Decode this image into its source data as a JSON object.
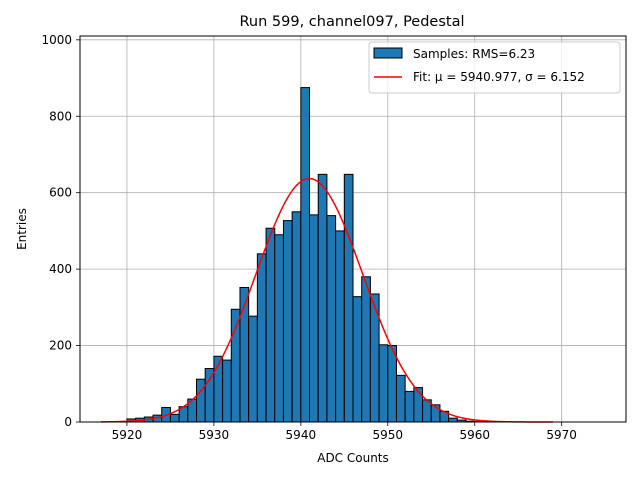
{
  "chart_data": {
    "type": "bar",
    "title": "Run 599, channel097, Pedestal",
    "xlabel": "ADC Counts",
    "ylabel": "Entries",
    "xlim": [
      5914.6,
      5977.4
    ],
    "ylim": [
      0,
      1010
    ],
    "xticks": [
      5920,
      5930,
      5940,
      5950,
      5960,
      5970
    ],
    "yticks": [
      0,
      200,
      400,
      600,
      800,
      1000
    ],
    "grid": true,
    "legend_position": "upper right",
    "bin_width": 1,
    "bin_edges_start": 5920,
    "series": [
      {
        "name": "Samples: RMS=6.23",
        "kind": "histogram",
        "color": "#1f77b4",
        "edgecolor": "#000000",
        "values": [
          8,
          10,
          13,
          18,
          38,
          20,
          40,
          60,
          112,
          140,
          172,
          162,
          295,
          352,
          277,
          440,
          507,
          490,
          527,
          550,
          875,
          542,
          648,
          540,
          500,
          648,
          328,
          380,
          335,
          202,
          200,
          122,
          80,
          90,
          58,
          45,
          28,
          10,
          5,
          2,
          1,
          1
        ]
      },
      {
        "name": "Fit: μ = 5940.977, σ = 6.152",
        "kind": "gaussian_fit",
        "color": "#ff0000",
        "mu": 5940.977,
        "sigma": 6.152,
        "amplitude": 637,
        "x_range": [
          5917,
          5969
        ]
      }
    ]
  }
}
